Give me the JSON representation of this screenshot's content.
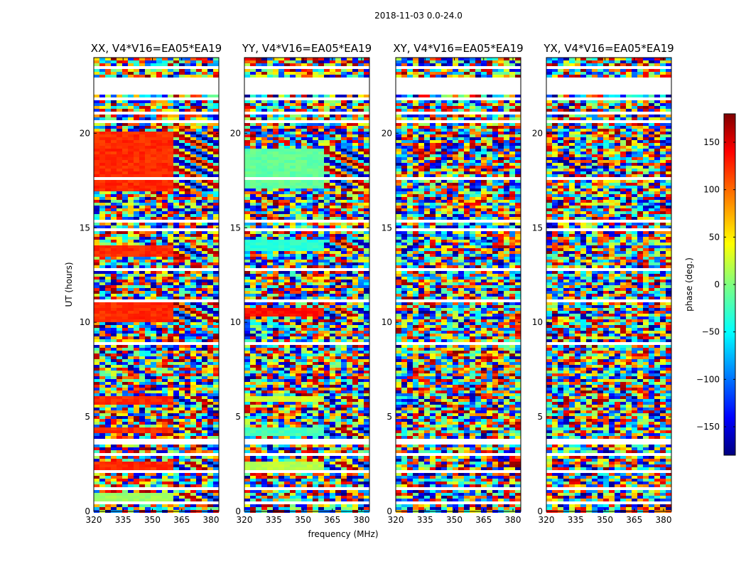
{
  "suptitle": "2018-11-03 0.0-24.0",
  "chart_data": {
    "type": "heatmap",
    "xlabel": "frequency (MHz)",
    "ylabel": "UT (hours)",
    "xlim": [
      320,
      384
    ],
    "ylim": [
      0,
      24
    ],
    "x_ticks": [
      320,
      335,
      350,
      365,
      380
    ],
    "y_ticks": [
      0,
      5,
      10,
      15,
      20
    ],
    "panels": [
      {
        "id": "xx",
        "title": "XX, V4*V16=EA05*EA19",
        "base_hue": "orange"
      },
      {
        "id": "yy",
        "title": "YY, V4*V16=EA05*EA19",
        "base_hue": "mixed"
      },
      {
        "id": "xy",
        "title": "XY, V4*V16=EA05*EA19",
        "base_hue": "noise"
      },
      {
        "id": "yx",
        "title": "YX, V4*V16=EA05*EA19",
        "base_hue": "noise"
      }
    ],
    "colorbar": {
      "label": "phase (deg.)",
      "range": [
        -180,
        180
      ],
      "ticks": [
        -150,
        -100,
        -50,
        0,
        50,
        100,
        150
      ],
      "colormap": "jet"
    },
    "xx_bright_bands": [
      {
        "t0": 17.0,
        "t1": 20.1,
        "phase": 120
      },
      {
        "t0": 13.5,
        "t1": 14.0,
        "phase": 120
      },
      {
        "t0": 10.0,
        "t1": 11.0,
        "phase": 120
      },
      {
        "t0": 5.7,
        "t1": 6.1,
        "phase": 120
      },
      {
        "t0": 4.1,
        "t1": 4.4,
        "phase": 120
      },
      {
        "t0": 2.1,
        "t1": 2.6,
        "phase": 120
      },
      {
        "t0": 0.5,
        "t1": 1.0,
        "phase": 10
      }
    ],
    "yy_bright_bands": [
      {
        "t0": 17.1,
        "t1": 19.2,
        "phase": -10
      },
      {
        "t0": 13.7,
        "t1": 14.3,
        "phase": -30
      },
      {
        "t0": 10.3,
        "t1": 10.8,
        "phase": 130
      },
      {
        "t0": 5.8,
        "t1": 6.1,
        "phase": 30
      },
      {
        "t0": 4.0,
        "t1": 4.4,
        "phase": -20
      },
      {
        "t0": 2.1,
        "t1": 2.6,
        "phase": 20
      }
    ],
    "gap_hours": [
      [
        23.4,
        23.6
      ],
      [
        22.0,
        22.9
      ],
      [
        21.8,
        21.9
      ],
      [
        21.0,
        21.2
      ],
      [
        20.6,
        20.7
      ],
      [
        17.6,
        17.7
      ],
      [
        16.3,
        16.4
      ],
      [
        15.2,
        15.4
      ],
      [
        14.8,
        14.9
      ],
      [
        12.7,
        12.8
      ],
      [
        11.1,
        11.2
      ],
      [
        8.75,
        8.9
      ],
      [
        8.3,
        8.35
      ],
      [
        5.9,
        5.95
      ],
      [
        4.9,
        4.95
      ],
      [
        3.6,
        3.8
      ],
      [
        3.0,
        3.1
      ],
      [
        2.05,
        2.15
      ],
      [
        1.2,
        1.3
      ],
      [
        0.45,
        0.5
      ]
    ]
  }
}
